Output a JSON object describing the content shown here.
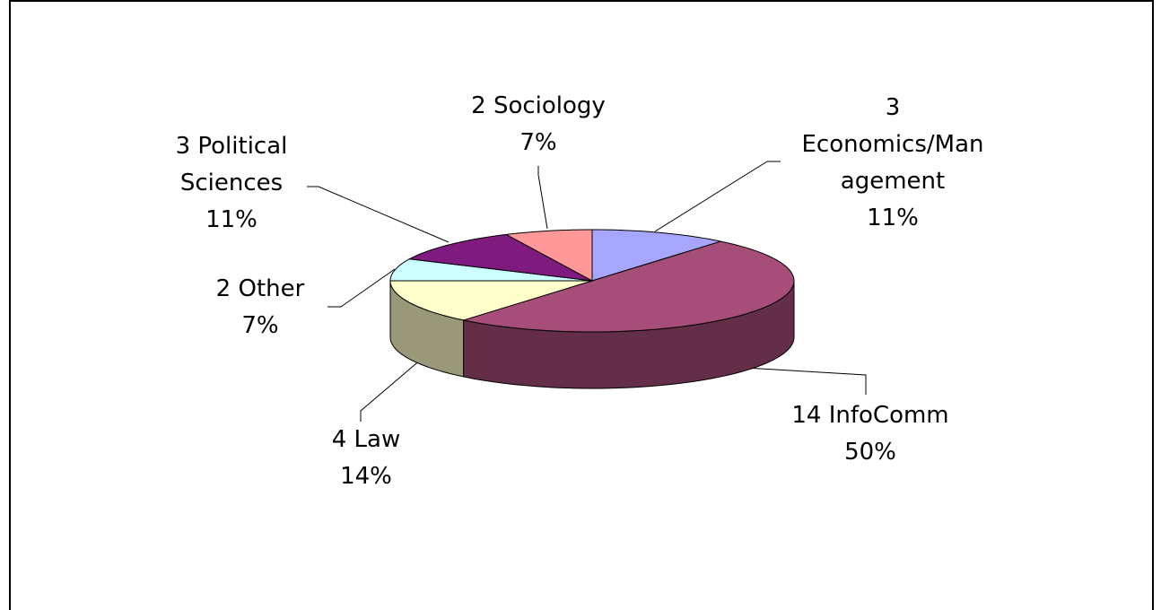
{
  "chart_data": {
    "type": "pie3d",
    "categories": [
      "3 Economics/Management",
      "14 InfoComm",
      "4 Law",
      "2 Other",
      "3 Political Sciences",
      "2 Sociology"
    ],
    "values": [
      11,
      50,
      14,
      7,
      11,
      7
    ],
    "value_labels": [
      "11%",
      "50%",
      "14%",
      "7%",
      "11%",
      "7%"
    ],
    "colors": [
      "#a6a6ff",
      "#a64d79",
      "#ffffcc",
      "#ccffff",
      "#7f1a7f",
      "#ff9999"
    ]
  }
}
